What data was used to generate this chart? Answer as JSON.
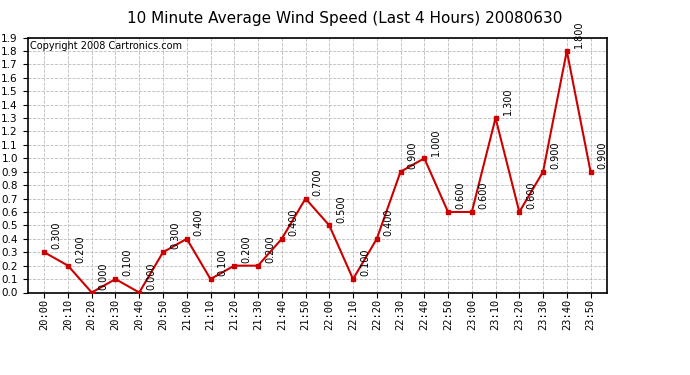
{
  "title": "10 Minute Average Wind Speed (Last 4 Hours) 20080630",
  "copyright": "Copyright 2008 Cartronics.com",
  "x_labels": [
    "20:00",
    "20:10",
    "20:20",
    "20:30",
    "20:40",
    "20:50",
    "21:00",
    "21:10",
    "21:20",
    "21:30",
    "21:40",
    "21:50",
    "22:00",
    "22:10",
    "22:20",
    "22:30",
    "22:40",
    "22:50",
    "23:00",
    "23:10",
    "23:20",
    "23:30",
    "23:40",
    "23:50"
  ],
  "y_values": [
    0.3,
    0.2,
    0.0,
    0.1,
    0.0,
    0.3,
    0.4,
    0.1,
    0.2,
    0.2,
    0.4,
    0.7,
    0.5,
    0.1,
    0.4,
    0.9,
    1.0,
    0.6,
    0.6,
    1.3,
    0.6,
    0.9,
    1.8,
    0.9
  ],
  "point_labels": [
    "0.300",
    "0.200",
    "0.000",
    "0.100",
    "0.000",
    "0.300",
    "0.400",
    "0.100",
    "0.200",
    "0.200",
    "0.400",
    "0.700",
    "0.500",
    "0.100",
    "0.400",
    "0.900",
    "1.000",
    "0.600",
    "0.600",
    "1.300",
    "0.600",
    "0.900",
    "1.800",
    "0.900"
  ],
  "line_color": "#cc0000",
  "marker_color": "#cc0000",
  "grid_color": "#bbbbbb",
  "background_color": "#ffffff",
  "ylim": [
    0.0,
    1.9
  ],
  "yticks": [
    0.0,
    0.1,
    0.2,
    0.3,
    0.4,
    0.5,
    0.6,
    0.7,
    0.8,
    0.9,
    1.0,
    1.1,
    1.2,
    1.3,
    1.4,
    1.5,
    1.6,
    1.7,
    1.8,
    1.9
  ],
  "title_fontsize": 11,
  "copyright_fontsize": 7,
  "label_fontsize": 7,
  "tick_fontsize": 7.5
}
